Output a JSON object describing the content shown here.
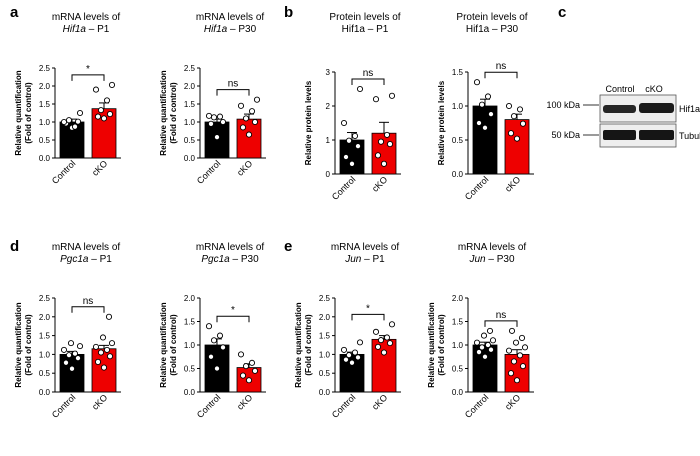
{
  "figure": {
    "panel_letters": [
      "a",
      "b",
      "c",
      "d",
      "e"
    ],
    "colors": {
      "control": "#000000",
      "cko": "#ee0000",
      "dot_fill": "#ffffff"
    }
  },
  "blot": {
    "lanes": [
      "Control",
      "cKO"
    ],
    "markers": [
      "100 kDa",
      "50 kDa"
    ],
    "proteins": [
      "Hif1a",
      "Tubulin"
    ]
  },
  "chart_data": [
    {
      "type": "bar",
      "panel": "a",
      "title_line1": "mRNA levels of",
      "title_gene": "Hif1a",
      "title_suffix": " – P1",
      "ylabel_line1": "Relative quantification",
      "ylabel_line2": "(Fold of control)",
      "categories": [
        "Control",
        "cKO"
      ],
      "values": [
        1.0,
        1.37
      ],
      "sem": [
        0.08,
        0.16
      ],
      "ylim": [
        0,
        2.5
      ],
      "yticks": [
        "0.0",
        "0.5",
        "1.0",
        "1.5",
        "2.0",
        "2.5"
      ],
      "significance": "*",
      "points": [
        [
          0.84,
          0.96,
          1.01,
          1.05,
          0.87,
          1.0,
          1.25
        ],
        [
          1.1,
          1.15,
          1.22,
          1.33,
          1.6,
          1.9,
          2.03
        ]
      ]
    },
    {
      "type": "bar",
      "panel": "a",
      "title_line1": "mRNA levels of",
      "title_gene": "Hif1a",
      "title_suffix": " – P30",
      "ylabel_line1": "Relative quantification",
      "ylabel_line2": "(Fold of control)",
      "categories": [
        "Control",
        "cKO"
      ],
      "values": [
        1.0,
        1.08
      ],
      "sem": [
        0.08,
        0.14
      ],
      "ylim": [
        0,
        2.5
      ],
      "yticks": [
        "0.0",
        "0.5",
        "1.0",
        "1.5",
        "2.0",
        "2.5"
      ],
      "significance": "ns",
      "points": [
        [
          0.58,
          0.95,
          1.0,
          1.13,
          1.15,
          1.17
        ],
        [
          0.65,
          0.85,
          1.0,
          1.1,
          1.3,
          1.45,
          1.62
        ]
      ]
    },
    {
      "type": "bar",
      "panel": "b",
      "title_line1": "Protein levels of",
      "title_gene": "",
      "title_suffix": "Hif1a – P1",
      "ylabel_line1": "Relative protein levels",
      "ylabel_line2": "",
      "categories": [
        "Control",
        "cKO"
      ],
      "values": [
        1.0,
        1.2
      ],
      "sem": [
        0.22,
        0.32
      ],
      "ylim": [
        0,
        3
      ],
      "yticks": [
        "0",
        "1",
        "2",
        "3"
      ],
      "significance": "ns",
      "points": [
        [
          0.3,
          0.5,
          0.82,
          0.98,
          1.12,
          1.5,
          2.5
        ],
        [
          0.3,
          0.55,
          0.88,
          0.95,
          1.15,
          2.2,
          2.3
        ]
      ]
    },
    {
      "type": "bar",
      "panel": "b",
      "title_line1": "Protein levels of",
      "title_gene": "",
      "title_suffix": "Hif1a – P30",
      "ylabel_line1": "Relative protein levels",
      "ylabel_line2": "",
      "categories": [
        "Control",
        "cKO"
      ],
      "values": [
        1.0,
        0.8
      ],
      "sem": [
        0.1,
        0.08
      ],
      "ylim": [
        0,
        1.5
      ],
      "yticks": [
        "0.0",
        "0.5",
        "1.0",
        "1.5"
      ],
      "significance": "ns",
      "points": [
        [
          0.68,
          0.75,
          0.88,
          1.02,
          1.14,
          1.35
        ],
        [
          0.52,
          0.6,
          0.74,
          0.85,
          0.95,
          1.0
        ]
      ]
    },
    {
      "type": "bar",
      "panel": "d",
      "title_line1": "mRNA levels of",
      "title_gene": "Pgc1a",
      "title_suffix": " – P1",
      "ylabel_line1": "Relative quantification",
      "ylabel_line2": "(Fold of control)",
      "categories": [
        "Control",
        "cKO"
      ],
      "values": [
        1.0,
        1.15
      ],
      "sem": [
        0.08,
        0.09
      ],
      "ylim": [
        0,
        2.5
      ],
      "yticks": [
        "0.0",
        "0.5",
        "1.0",
        "1.5",
        "2.0",
        "2.5"
      ],
      "significance": "ns",
      "points": [
        [
          0.62,
          0.78,
          0.9,
          0.98,
          1.02,
          1.12,
          1.22,
          1.3
        ],
        [
          0.65,
          0.8,
          0.95,
          1.05,
          1.12,
          1.2,
          1.3,
          1.45,
          2.0
        ]
      ]
    },
    {
      "type": "bar",
      "panel": "d",
      "title_line1": "mRNA levels of",
      "title_gene": "Pgc1a",
      "title_suffix": " – P30",
      "ylabel_line1": "Relative quantification",
      "ylabel_line2": "(Fold of control)",
      "categories": [
        "Control",
        "cKO"
      ],
      "values": [
        1.0,
        0.52
      ],
      "sem": [
        0.13,
        0.08
      ],
      "ylim": [
        0,
        2
      ],
      "yticks": [
        "0.0",
        "0.5",
        "1.0",
        "1.5",
        "2.0"
      ],
      "significance": "*",
      "points": [
        [
          0.5,
          0.75,
          0.95,
          1.1,
          1.2,
          1.4
        ],
        [
          0.25,
          0.35,
          0.45,
          0.55,
          0.62,
          0.8
        ]
      ]
    },
    {
      "type": "bar",
      "panel": "e",
      "title_line1": "mRNA levels of",
      "title_gene": "Jun",
      "title_suffix": " – P1",
      "ylabel_line1": "Relative quantification",
      "ylabel_line2": "(Fold of control)",
      "categories": [
        "Control",
        "cKO"
      ],
      "values": [
        1.0,
        1.4
      ],
      "sem": [
        0.06,
        0.1
      ],
      "ylim": [
        0,
        2.5
      ],
      "yticks": [
        "0.0",
        "0.5",
        "1.0",
        "1.5",
        "2.0",
        "2.5"
      ],
      "significance": "*",
      "points": [
        [
          0.78,
          0.86,
          0.92,
          0.98,
          1.05,
          1.12,
          1.32
        ],
        [
          1.05,
          1.2,
          1.3,
          1.38,
          1.45,
          1.6,
          1.8
        ]
      ]
    },
    {
      "type": "bar",
      "panel": "e",
      "title_line1": "mRNA levels of",
      "title_gene": "Jun",
      "title_suffix": " – P30",
      "ylabel_line1": "Relative quantification",
      "ylabel_line2": "(Fold of control)",
      "categories": [
        "Control",
        "cKO"
      ],
      "values": [
        1.0,
        0.8
      ],
      "sem": [
        0.06,
        0.1
      ],
      "ylim": [
        0,
        2
      ],
      "yticks": [
        "0.0",
        "0.5",
        "1.0",
        "1.5",
        "2.0"
      ],
      "significance": "ns",
      "points": [
        [
          0.75,
          0.85,
          0.9,
          0.95,
          1.0,
          1.05,
          1.1,
          1.2,
          1.3
        ],
        [
          0.25,
          0.4,
          0.55,
          0.65,
          0.78,
          0.88,
          0.95,
          1.05,
          1.15,
          1.3
        ]
      ]
    }
  ]
}
